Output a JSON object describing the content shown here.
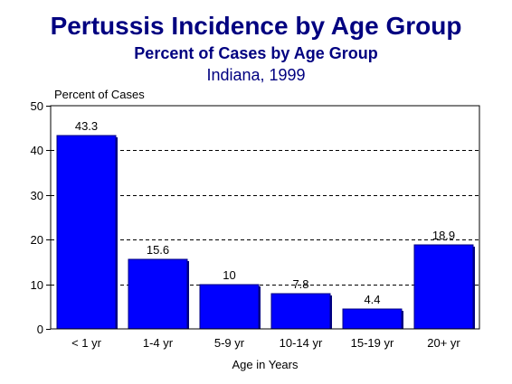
{
  "header": {
    "title": "Pertussis Incidence by Age Group",
    "subtitle": "Percent of Cases by Age Group",
    "location": "Indiana, 1999"
  },
  "chart_data": {
    "type": "bar",
    "categories": [
      "< 1 yr",
      "1-4 yr",
      "5-9 yr",
      "10-14 yr",
      "15-19 yr",
      "20+ yr"
    ],
    "values": [
      43.3,
      15.6,
      10,
      7.8,
      4.4,
      18.9
    ],
    "value_labels": [
      "43.3",
      "15.6",
      "10",
      "7.8",
      "4.4",
      "18.9"
    ],
    "ylabel": "Percent of Cases",
    "xlabel": "Age in Years",
    "ylim": [
      0,
      50
    ],
    "yticks": [
      0,
      10,
      20,
      30,
      40,
      50
    ],
    "grid": "horizontal dashed",
    "legend": "none",
    "bar_color": "#0000ff",
    "bar_shadow_color": "#000080"
  }
}
